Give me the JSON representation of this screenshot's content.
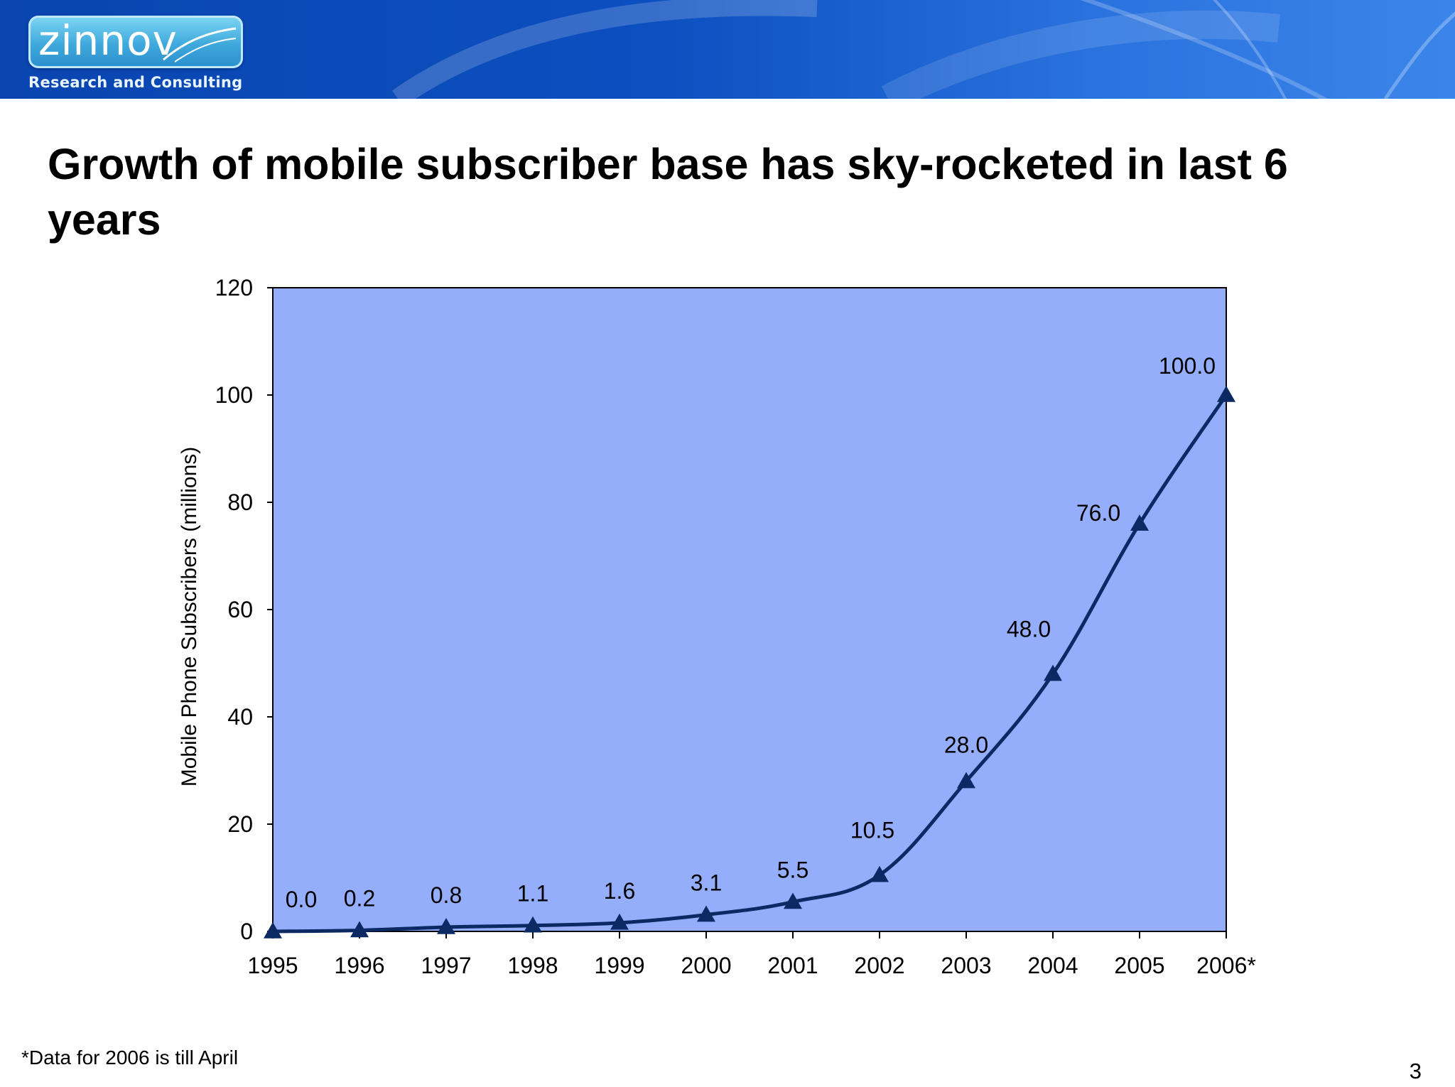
{
  "header": {
    "logo_text": "zinnov",
    "logo_tagline": "Research and Consulting",
    "band_colors": [
      "#0a45b0",
      "#3b85ea"
    ]
  },
  "slide": {
    "title": "Growth of mobile subscriber base has sky-rocketed in last 6 years",
    "footnote": "*Data for 2006 is till April",
    "page_number": "3"
  },
  "chart_data": {
    "type": "line",
    "title": "",
    "xlabel": "",
    "ylabel": "Mobile Phone Subscribers (millions)",
    "categories": [
      "1995",
      "1996",
      "1997",
      "1998",
      "1999",
      "2000",
      "2001",
      "2002",
      "2003",
      "2004",
      "2005",
      "2006*"
    ],
    "values": [
      0.0,
      0.2,
      0.8,
      1.1,
      1.6,
      3.1,
      5.5,
      10.5,
      28.0,
      48.0,
      76.0,
      100.0
    ],
    "data_labels": [
      "0.0",
      "0.2",
      "0.8",
      "1.1",
      "1.6",
      "3.1",
      "5.5",
      "10.5",
      "28.0",
      "48.0",
      "76.0",
      "100.0"
    ],
    "ylim": [
      0,
      120
    ],
    "yticks": [
      0,
      20,
      40,
      60,
      80,
      100,
      120
    ],
    "grid": false,
    "legend": false,
    "marker": "triangle",
    "colors": {
      "plot_background": "#95aefc",
      "line": "#0b2a63",
      "marker": "#0b2a63"
    }
  }
}
